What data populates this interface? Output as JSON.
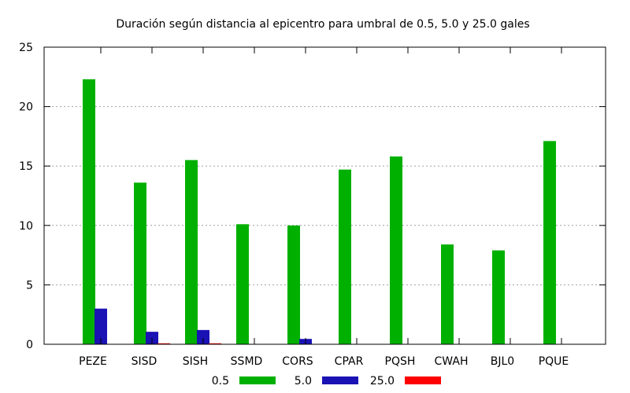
{
  "chart_data": {
    "type": "bar",
    "title": "Duración según distancia al epicentro para umbral de 0.5, 5.0 y 25.0 gales",
    "xlabel": "",
    "ylabel": "",
    "categories": [
      "PEZE",
      "SISD",
      "SISH",
      "SSMD",
      "CORS",
      "CPAR",
      "PQSH",
      "CWAH",
      "BJL0",
      "PQUE"
    ],
    "ylim": [
      0,
      25
    ],
    "yticks": [
      0,
      5,
      10,
      15,
      20,
      25
    ],
    "grid": true,
    "legend_position": "bottom",
    "series": [
      {
        "name": "0.5",
        "color": "#00b000",
        "values": [
          22.3,
          13.6,
          15.5,
          10.1,
          10.0,
          14.7,
          15.8,
          8.4,
          7.9,
          17.1
        ]
      },
      {
        "name": "5.0",
        "color": "#1a12b4",
        "values": [
          3.0,
          1.05,
          1.2,
          0,
          0.45,
          0,
          0,
          0,
          0,
          0
        ]
      },
      {
        "name": "25.0",
        "color": "#ff0000",
        "values": [
          0,
          0.08,
          0.08,
          0,
          0,
          0,
          0,
          0,
          0,
          0
        ]
      }
    ]
  }
}
